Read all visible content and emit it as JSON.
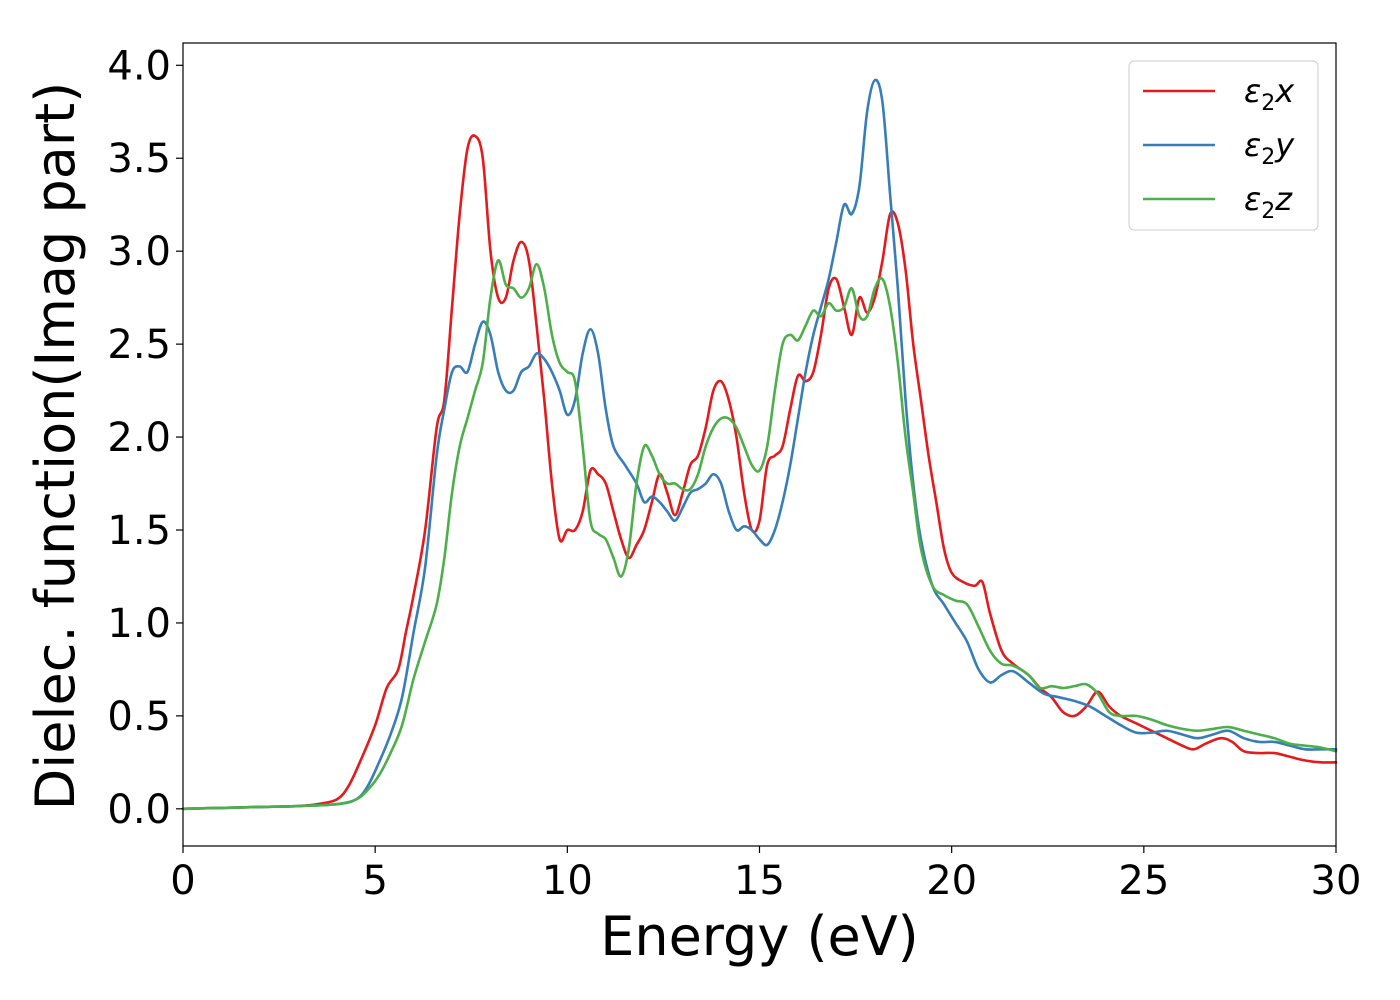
{
  "chart_data": {
    "type": "line",
    "title": "",
    "xlabel": "Energy (eV)",
    "ylabel": "Dielec. function(Imag part)",
    "xlim": [
      0,
      30
    ],
    "ylim": [
      -0.2,
      4.12
    ],
    "xticks": [
      0,
      5,
      10,
      15,
      20,
      25,
      30
    ],
    "yticks": [
      0.0,
      0.5,
      1.0,
      1.5,
      2.0,
      2.5,
      3.0,
      3.5,
      4.0
    ],
    "xtick_labels": [
      "0",
      "5",
      "10",
      "15",
      "20",
      "25",
      "30"
    ],
    "ytick_labels": [
      "0.0",
      "0.5",
      "1.0",
      "1.5",
      "2.0",
      "2.5",
      "3.0",
      "3.5",
      "4.0"
    ],
    "grid": false,
    "legend_position": "top-right",
    "series": [
      {
        "name": "ε₂x",
        "symbol": "ε",
        "sub": "2",
        "var": "x",
        "color": "#e41a1c",
        "x": [
          0,
          1,
          2,
          3,
          3.5,
          4,
          4.3,
          4.6,
          5,
          5.3,
          5.6,
          5.8,
          6,
          6.3,
          6.6,
          6.8,
          7,
          7.2,
          7.4,
          7.6,
          7.8,
          8,
          8.2,
          8.4,
          8.6,
          8.8,
          9,
          9.2,
          9.4,
          9.6,
          9.8,
          10,
          10.2,
          10.4,
          10.6,
          10.8,
          11,
          11.2,
          11.4,
          11.6,
          11.8,
          12,
          12.2,
          12.4,
          12.6,
          12.8,
          13,
          13.2,
          13.4,
          13.6,
          13.8,
          14,
          14.2,
          14.4,
          14.6,
          14.8,
          15,
          15.2,
          15.4,
          15.6,
          15.8,
          16,
          16.2,
          16.4,
          16.6,
          16.8,
          17,
          17.2,
          17.4,
          17.6,
          17.8,
          18,
          18.2,
          18.4,
          18.6,
          18.8,
          19,
          19.2,
          19.4,
          19.6,
          19.8,
          20,
          20.3,
          20.6,
          20.8,
          21,
          21.3,
          21.6,
          22,
          22.3,
          22.6,
          22.9,
          23.2,
          23.5,
          23.8,
          24.1,
          24.4,
          24.8,
          25.2,
          25.6,
          26,
          26.3,
          26.6,
          27,
          27.3,
          27.6,
          28,
          28.4,
          28.8,
          29.2,
          29.6,
          30
        ],
        "y": [
          0,
          0.005,
          0.01,
          0.015,
          0.025,
          0.05,
          0.12,
          0.25,
          0.45,
          0.65,
          0.75,
          0.95,
          1.15,
          1.5,
          2.05,
          2.2,
          2.7,
          3.2,
          3.55,
          3.62,
          3.5,
          3.0,
          2.75,
          2.75,
          2.95,
          3.05,
          2.95,
          2.6,
          2.2,
          1.75,
          1.45,
          1.5,
          1.5,
          1.6,
          1.82,
          1.8,
          1.75,
          1.6,
          1.45,
          1.35,
          1.42,
          1.5,
          1.65,
          1.8,
          1.7,
          1.58,
          1.7,
          1.85,
          1.9,
          2.05,
          2.25,
          2.3,
          2.2,
          2.0,
          1.7,
          1.5,
          1.55,
          1.85,
          1.9,
          1.95,
          2.15,
          2.33,
          2.3,
          2.35,
          2.55,
          2.8,
          2.85,
          2.7,
          2.55,
          2.75,
          2.67,
          2.75,
          2.95,
          3.2,
          3.15,
          2.9,
          2.5,
          2.2,
          1.9,
          1.65,
          1.4,
          1.27,
          1.22,
          1.2,
          1.22,
          1.05,
          0.85,
          0.78,
          0.72,
          0.65,
          0.6,
          0.52,
          0.5,
          0.55,
          0.63,
          0.55,
          0.5,
          0.46,
          0.42,
          0.38,
          0.34,
          0.32,
          0.35,
          0.38,
          0.36,
          0.31,
          0.3,
          0.3,
          0.28,
          0.26,
          0.25,
          0.25
        ]
      },
      {
        "name": "ε₂y",
        "symbol": "ε",
        "sub": "2",
        "var": "y",
        "color": "#377eb8",
        "x": [
          0,
          1,
          2,
          3,
          4,
          4.5,
          4.8,
          5.1,
          5.4,
          5.7,
          6,
          6.3,
          6.6,
          6.8,
          7,
          7.2,
          7.4,
          7.6,
          7.8,
          8,
          8.2,
          8.4,
          8.6,
          8.8,
          9,
          9.2,
          9.4,
          9.6,
          9.8,
          10,
          10.2,
          10.4,
          10.6,
          10.8,
          11,
          11.2,
          11.5,
          11.8,
          12,
          12.2,
          12.4,
          12.6,
          12.8,
          13,
          13.2,
          13.4,
          13.6,
          13.8,
          14,
          14.2,
          14.4,
          14.6,
          14.8,
          15,
          15.2,
          15.4,
          15.6,
          15.8,
          16,
          16.2,
          16.4,
          16.6,
          16.8,
          17,
          17.2,
          17.4,
          17.6,
          17.8,
          18,
          18.2,
          18.4,
          18.6,
          18.8,
          19,
          19.2,
          19.5,
          19.8,
          20.1,
          20.4,
          20.7,
          21,
          21.3,
          21.6,
          22,
          22.4,
          22.8,
          23.2,
          23.6,
          24,
          24.4,
          24.8,
          25.2,
          25.6,
          26,
          26.4,
          26.8,
          27.2,
          27.6,
          28,
          28.4,
          28.8,
          29.2,
          29.6,
          30
        ],
        "y": [
          0,
          0.005,
          0.01,
          0.015,
          0.025,
          0.05,
          0.12,
          0.25,
          0.4,
          0.6,
          0.95,
          1.3,
          1.9,
          2.15,
          2.35,
          2.38,
          2.35,
          2.5,
          2.62,
          2.55,
          2.35,
          2.25,
          2.25,
          2.35,
          2.38,
          2.45,
          2.42,
          2.35,
          2.25,
          2.12,
          2.2,
          2.45,
          2.58,
          2.45,
          2.15,
          1.95,
          1.85,
          1.75,
          1.65,
          1.68,
          1.65,
          1.6,
          1.55,
          1.62,
          1.7,
          1.72,
          1.75,
          1.8,
          1.75,
          1.6,
          1.5,
          1.52,
          1.5,
          1.45,
          1.42,
          1.5,
          1.65,
          1.85,
          2.1,
          2.35,
          2.55,
          2.7,
          2.85,
          3.05,
          3.25,
          3.2,
          3.35,
          3.75,
          3.92,
          3.8,
          3.3,
          2.8,
          2.2,
          1.75,
          1.45,
          1.2,
          1.1,
          1.0,
          0.9,
          0.75,
          0.68,
          0.72,
          0.74,
          0.68,
          0.62,
          0.6,
          0.58,
          0.55,
          0.5,
          0.45,
          0.41,
          0.41,
          0.42,
          0.4,
          0.38,
          0.4,
          0.42,
          0.38,
          0.36,
          0.36,
          0.34,
          0.32,
          0.32,
          0.32
        ]
      },
      {
        "name": "ε₂z",
        "symbol": "ε",
        "sub": "2",
        "var": "z",
        "color": "#4daf4a",
        "x": [
          0,
          1,
          2,
          3,
          4,
          4.5,
          4.8,
          5.1,
          5.4,
          5.7,
          6,
          6.3,
          6.6,
          6.8,
          7,
          7.2,
          7.4,
          7.6,
          7.8,
          8,
          8.2,
          8.4,
          8.6,
          8.8,
          9,
          9.2,
          9.4,
          9.6,
          9.8,
          10,
          10.2,
          10.4,
          10.6,
          10.8,
          11,
          11.2,
          11.4,
          11.6,
          11.8,
          12,
          12.2,
          12.4,
          12.6,
          12.8,
          13,
          13.2,
          13.4,
          13.6,
          13.8,
          14,
          14.2,
          14.4,
          14.6,
          14.8,
          15,
          15.2,
          15.4,
          15.6,
          15.8,
          16,
          16.2,
          16.4,
          16.6,
          16.8,
          17,
          17.2,
          17.4,
          17.6,
          17.8,
          18,
          18.2,
          18.4,
          18.6,
          18.8,
          19,
          19.2,
          19.5,
          19.8,
          20.1,
          20.4,
          20.7,
          21,
          21.3,
          21.6,
          22,
          22.3,
          22.6,
          22.9,
          23.2,
          23.5,
          23.8,
          24.1,
          24.4,
          24.8,
          25.2,
          25.6,
          26,
          26.4,
          26.8,
          27.2,
          27.6,
          28,
          28.4,
          28.8,
          29.2,
          29.6,
          30
        ],
        "y": [
          0,
          0.005,
          0.01,
          0.015,
          0.025,
          0.05,
          0.1,
          0.18,
          0.3,
          0.45,
          0.7,
          0.9,
          1.1,
          1.35,
          1.7,
          1.95,
          2.1,
          2.25,
          2.4,
          2.75,
          2.95,
          2.82,
          2.8,
          2.75,
          2.8,
          2.93,
          2.8,
          2.55,
          2.4,
          2.35,
          2.3,
          1.95,
          1.55,
          1.48,
          1.45,
          1.35,
          1.25,
          1.4,
          1.75,
          1.95,
          1.9,
          1.8,
          1.75,
          1.75,
          1.72,
          1.72,
          1.8,
          1.95,
          2.05,
          2.1,
          2.1,
          2.05,
          1.95,
          1.85,
          1.82,
          1.95,
          2.25,
          2.5,
          2.55,
          2.52,
          2.6,
          2.68,
          2.65,
          2.72,
          2.68,
          2.7,
          2.8,
          2.65,
          2.65,
          2.8,
          2.85,
          2.7,
          2.4,
          2.0,
          1.7,
          1.4,
          1.2,
          1.15,
          1.12,
          1.1,
          0.98,
          0.85,
          0.78,
          0.77,
          0.72,
          0.65,
          0.66,
          0.65,
          0.66,
          0.67,
          0.62,
          0.52,
          0.5,
          0.5,
          0.48,
          0.45,
          0.43,
          0.42,
          0.43,
          0.44,
          0.42,
          0.4,
          0.38,
          0.35,
          0.34,
          0.33,
          0.31
        ]
      }
    ]
  }
}
